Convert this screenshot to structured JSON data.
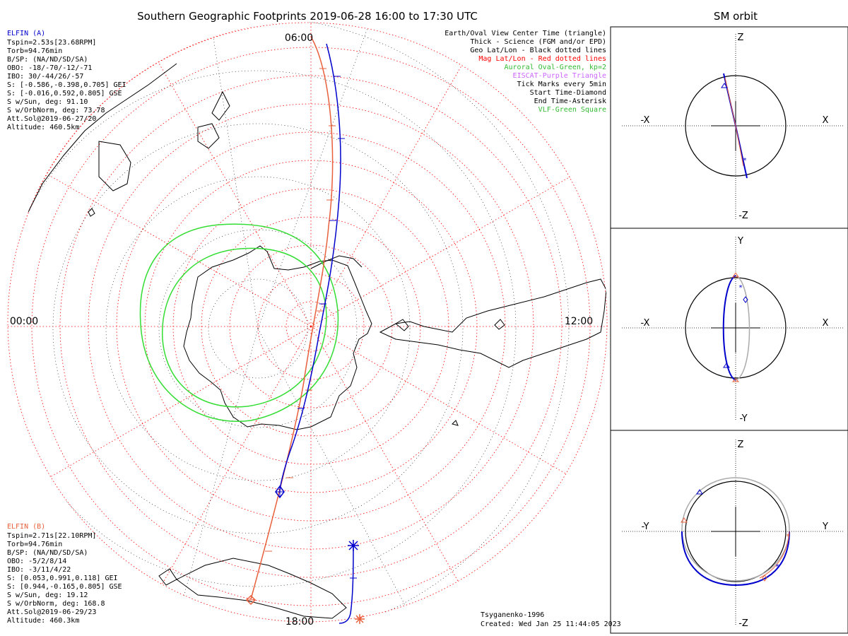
{
  "title": "Southern Geographic Footprints 2019-06-28 16:00 to 17:30 UTC",
  "orbit_title": "SM orbit",
  "time_labels": {
    "top": "06:00",
    "left": "00:00",
    "right": "12:00",
    "bottom": "18:00"
  },
  "sat_a": {
    "name": "ELFIN (A)",
    "color": "#0000cc",
    "lines": [
      "Tspin=2.53s[23.68RPM]",
      "Torb=94.76min",
      "B/SP: (NA/ND/SD/SA)",
      "OBO: -18/-70/-12/-71",
      "IBO: 30/-44/26/-57",
      "S: [-0.586,-0.398,0.705] GEI",
      "S: [-0.016,0.592,0.805] GSE",
      "S w/Sun, deg: 91.10",
      "S w/OrbNorm, deg: 73.78",
      "Att.Sol@2019-06-27/20",
      "Altitude: 460.5km"
    ]
  },
  "sat_b": {
    "name": "ELFIN (B)",
    "color": "#e8603c",
    "lines": [
      "Tspin=2.71s[22.10RPM]",
      "Torb=94.76min",
      "B/SP: (NA/ND/SD/SA)",
      "OBO: -5/2/8/14",
      "IBO: -3/11/4/22",
      "S: [0.053,0.991,0.118] GEI",
      "S: [0.944,-0.165,0.805] GSE",
      "S w/Sun, deg: 19.12",
      "S w/OrbNorm, deg: 168.8",
      "Att.Sol@2019-06-29/23",
      "Altitude: 460.3km"
    ]
  },
  "legend": [
    {
      "text": "Earth/Oval View Center Time (triangle)",
      "color": "#000000"
    },
    {
      "text": "Thick - Science (FGM and/or EPD)",
      "color": "#000000"
    },
    {
      "text": "Geo Lat/Lon - Black dotted lines",
      "color": "#000000"
    },
    {
      "text": "Mag Lat/Lon - Red dotted lines",
      "color": "#ff0000"
    },
    {
      "text": "Auroral Oval-Green, kp=2",
      "color": "#33bb33"
    },
    {
      "text": "EISCAT-Purple Triangle",
      "color": "#cc66ff"
    },
    {
      "text": "Tick Marks every 5min",
      "color": "#000000"
    },
    {
      "text": "Start Time-Diamond",
      "color": "#000000"
    },
    {
      "text": "End Time-Asterisk",
      "color": "#000000"
    },
    {
      "text": "VLF-Green Square",
      "color": "#33bb33"
    }
  ],
  "footer": {
    "model": "Tsyganenko-1996",
    "created": "Created: Wed Jan 25 11:44:05 2023"
  },
  "orbit_panels": [
    {
      "top": "Z",
      "bottom": "-Z",
      "left": "-X",
      "right": "X"
    },
    {
      "top": "Y",
      "bottom": "-Y",
      "left": "-X",
      "right": "X"
    },
    {
      "top": "Z",
      "bottom": "-Z",
      "left": "-Y",
      "right": "Y"
    }
  ]
}
